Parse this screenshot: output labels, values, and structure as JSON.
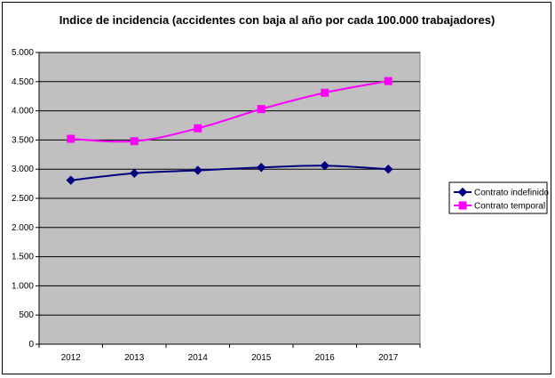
{
  "chart_data": {
    "type": "line",
    "title": "Indice de incidencia (accidentes con baja al año por cada 100.000 trabajadores)",
    "categories": [
      "2012",
      "2013",
      "2014",
      "2015",
      "2016",
      "2017"
    ],
    "series": [
      {
        "name": "Contrato indefinido",
        "values": [
          2810,
          2930,
          2980,
          3030,
          3060,
          3000
        ],
        "color": "#000080",
        "marker": "diamond"
      },
      {
        "name": "Contrato temporal",
        "values": [
          3520,
          3480,
          3700,
          4030,
          4310,
          4510
        ],
        "color": "#ff00ff",
        "marker": "square"
      }
    ],
    "ylim": [
      0,
      5000
    ],
    "yticks": [
      0,
      500,
      1000,
      1500,
      2000,
      2500,
      3000,
      3500,
      4000,
      4500,
      5000
    ],
    "ytick_labels": [
      "0",
      "500",
      "1.000",
      "1.500",
      "2.000",
      "2.500",
      "3.000",
      "3.500",
      "4.000",
      "4.500",
      "5.000"
    ],
    "grid": true,
    "plot_background": "#c0c0c0",
    "legend_position": "right"
  }
}
